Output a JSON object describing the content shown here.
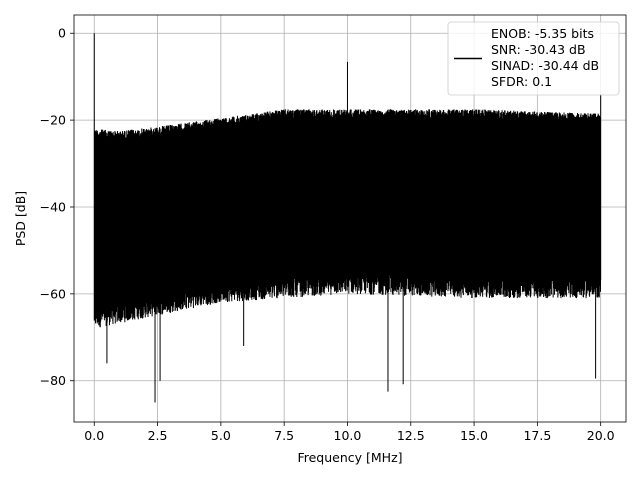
{
  "chart_data": {
    "type": "line",
    "xlabel": "Frequency [MHz]",
    "ylabel": "PSD [dB]",
    "xlim": [
      -0.8,
      21.0
    ],
    "ylim": [
      -89.5,
      4.2
    ],
    "xticks": [
      0.0,
      2.5,
      5.0,
      7.5,
      10.0,
      12.5,
      15.0,
      17.5,
      20.0
    ],
    "xtick_labels": [
      "0.0",
      "2.5",
      "5.0",
      "7.5",
      "10.0",
      "12.5",
      "15.0",
      "17.5",
      "20.0"
    ],
    "yticks": [
      0,
      -20,
      -40,
      -60,
      -80
    ],
    "ytick_labels": [
      "0",
      "−20",
      "−40",
      "−60",
      "−80"
    ],
    "grid": true,
    "legend_position": "top-right",
    "legend_lines": [
      "ENOB: -5.35 bits",
      "SNR: -30.43 dB",
      "SINAD: -30.44 dB",
      "SFDR: 0.1"
    ],
    "line_color": "#000000",
    "series": [
      {
        "frequency_range": [
          0,
          20
        ],
        "spikes": [
          {
            "x": 0.0,
            "y": 0.0
          },
          {
            "x": 10.0,
            "y": -6.6
          },
          {
            "x": 20.0,
            "y": -14.0
          }
        ],
        "upper_envelope": [
          [
            0.0,
            -22
          ],
          [
            1.0,
            -22.5
          ],
          [
            2.5,
            -21.5
          ],
          [
            5.0,
            -19.5
          ],
          [
            7.5,
            -17.5
          ],
          [
            10.0,
            -17.5
          ],
          [
            12.5,
            -17.5
          ],
          [
            15.0,
            -17.5
          ],
          [
            17.5,
            -18.0
          ],
          [
            20.0,
            -18.5
          ]
        ],
        "lower_envelope": [
          [
            0.0,
            -68
          ],
          [
            2.5,
            -65
          ],
          [
            5.0,
            -62
          ],
          [
            10.0,
            -60
          ],
          [
            15.0,
            -61
          ],
          [
            20.0,
            -61
          ]
        ],
        "deep_dips": [
          {
            "x": 0.5,
            "y": -76
          },
          {
            "x": 2.4,
            "y": -85.0
          },
          {
            "x": 2.6,
            "y": -80
          },
          {
            "x": 5.9,
            "y": -72
          },
          {
            "x": 11.6,
            "y": -82.5
          },
          {
            "x": 12.2,
            "y": -80.8
          },
          {
            "x": 19.8,
            "y": -79.5
          }
        ]
      }
    ]
  }
}
